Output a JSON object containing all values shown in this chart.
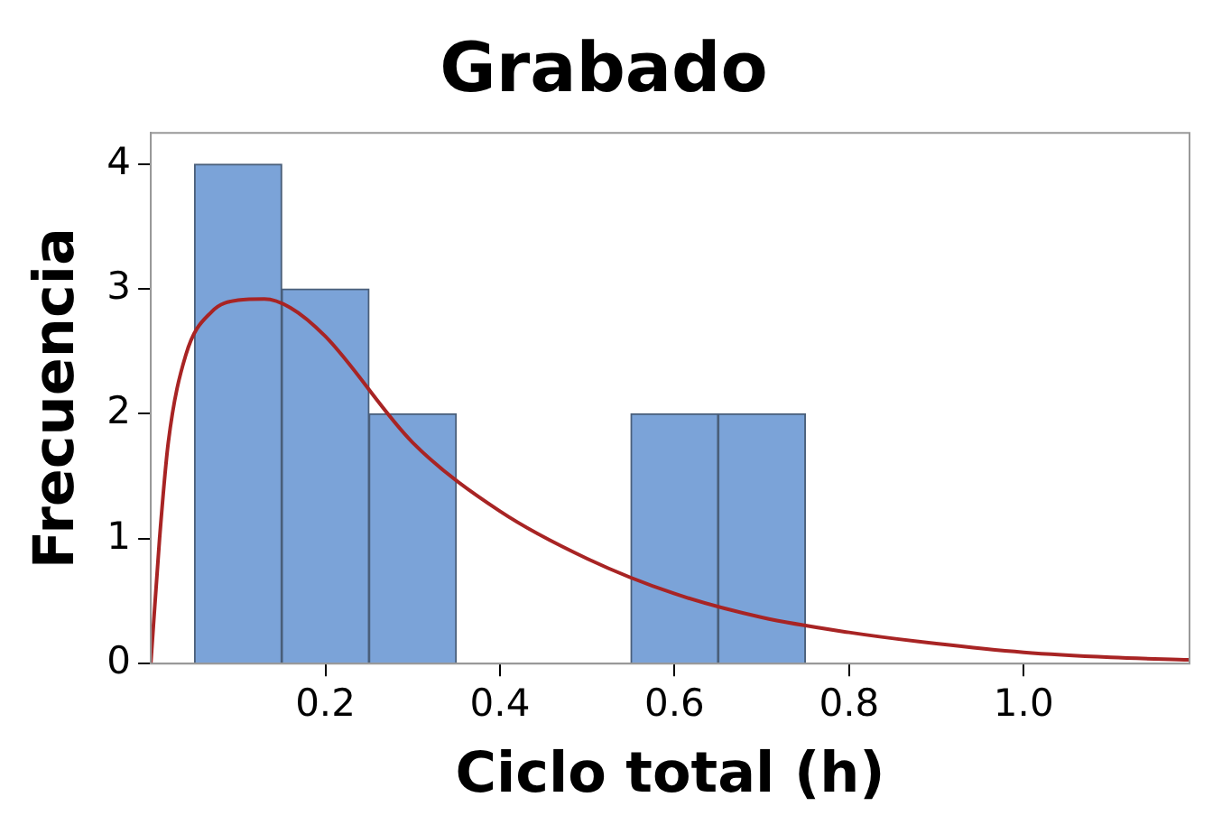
{
  "chart_data": {
    "type": "histogram",
    "title": "Grabado",
    "xlabel": "Ciclo total (h)",
    "ylabel": "Frecuencia",
    "bins": [
      0.05,
      0.15,
      0.25,
      0.35,
      0.45,
      0.55,
      0.65,
      0.75
    ],
    "values": [
      4,
      3,
      2,
      0,
      0,
      2,
      2
    ],
    "color": "#7ba3d8",
    "series": [
      {
        "type": "line",
        "color": "#a82424",
        "marker": "none",
        "x": [
          0,
          0.01,
          0.02,
          0.04,
          0.07,
          0.1,
          0.13,
          0.16,
          0.2,
          0.3,
          0.4,
          0.5,
          0.6,
          0.7,
          0.8,
          0.9,
          1.0,
          1.1,
          1.19
        ],
        "values": [
          0,
          1.0,
          1.77,
          2.47,
          2.82,
          2.91,
          2.92,
          2.85,
          2.62,
          1.77,
          1.22,
          0.84,
          0.56,
          0.37,
          0.25,
          0.16,
          0.09,
          0.05,
          0.03
        ]
      }
    ],
    "xlim": [
      0,
      1.19
    ],
    "ylim": [
      0,
      4.25
    ],
    "xticks": [
      {
        "value": 0.2,
        "label": "0.2"
      },
      {
        "value": 0.4,
        "label": "0.4"
      },
      {
        "value": 0.6,
        "label": "0.6"
      },
      {
        "value": 0.8,
        "label": "0.8"
      },
      {
        "value": 1.0,
        "label": "1.0"
      }
    ],
    "yticks": [
      0,
      1,
      2,
      3,
      4
    ],
    "grid": false,
    "legend": false
  }
}
